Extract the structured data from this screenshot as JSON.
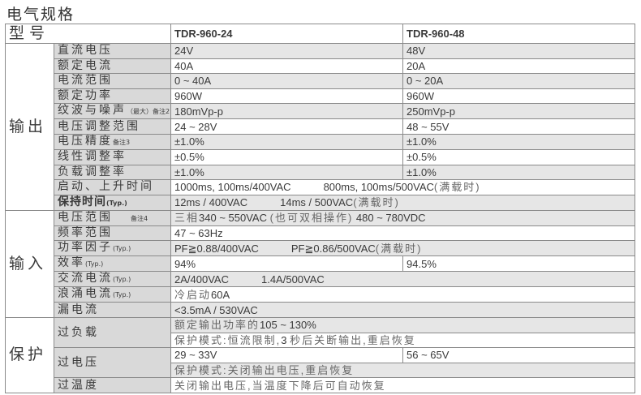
{
  "title": "电气规格",
  "header": {
    "model_label": "型号",
    "models": [
      "TDR-960-24",
      "TDR-960-48"
    ]
  },
  "sections": {
    "output": "输出",
    "input": "输入",
    "protection": "保护"
  },
  "output": {
    "dc_voltage": {
      "label": "直流电压",
      "v1": "24V",
      "v2": "48V"
    },
    "rated_current": {
      "label": "额定电流",
      "v1": "40A",
      "v2": "20A"
    },
    "current_range": {
      "label": "电流范围",
      "v1": "0 ~ 40A",
      "v2": "0 ~ 20A"
    },
    "rated_power": {
      "label": "额定功率",
      "v1": "960W",
      "v2": "960W"
    },
    "ripple": {
      "label": "纹波与噪声",
      "sub": "（最大）",
      "note": "备注2",
      "v1": "180mVp-p",
      "v2": "250mVp-p"
    },
    "voltage_adj": {
      "label": "电压调整范围",
      "v1": "24 ~ 28V",
      "v2": "48 ~ 55V"
    },
    "voltage_tol": {
      "label": "电压精度",
      "note": "备注3",
      "v1": "±1.0%",
      "v2": "±1.0%"
    },
    "line_reg": {
      "label": "线性调整率",
      "v1": "±0.5%",
      "v2": "±0.5%"
    },
    "load_reg": {
      "label": "负载调整率",
      "v1": "±1.0%",
      "v2": "±1.0%"
    },
    "setup": {
      "label": "启动、上升时间",
      "a": "1000ms, 100ms/400VAC",
      "b": "800ms, 100ms/500VAC",
      "c": "(满载时)"
    },
    "hold": {
      "label": "保持时间",
      "typ": "(Typ.)",
      "a": "12ms / 400VAC",
      "b": "14ms / 500VAC",
      "c": "(满载时)"
    }
  },
  "input": {
    "voltage_range": {
      "label": "电压范围",
      "note": "备注4",
      "a": "三相",
      "b": "340 ~ 550VAC",
      "c": "(也可双相操作)",
      "d": "480 ~ 780VDC"
    },
    "freq": {
      "label": "频率范围",
      "v": "47 ~ 63Hz"
    },
    "pf": {
      "label": "功率因子",
      "typ": "(Typ.)",
      "a": "PF≧0.88/400VAC",
      "b": "PF≧0.86/500VAC",
      "c": "(满载时)"
    },
    "eff": {
      "label": "效率",
      "typ": "(Typ.)",
      "v1": "94%",
      "v2": "94.5%"
    },
    "ac_current": {
      "label": "交流电流",
      "typ": "(Typ.)",
      "a": "2A/400VAC",
      "b": "1.4A/500VAC"
    },
    "inrush": {
      "label": "浪涌电流",
      "typ": "(Typ.)",
      "a": "冷启动",
      "b": "60A"
    },
    "leakage": {
      "label": "漏电流",
      "v": "<3.5mA / 530VAC"
    }
  },
  "protection": {
    "overload": {
      "label": "过负载",
      "a1": "额定输出功率的",
      "a2": "105 ~ 130%",
      "b1": "保护模式:恒流限制,",
      "b2": "3",
      "b3": "秒后关断输出,重启恢复"
    },
    "overvoltage": {
      "label": "过电压",
      "v1": "29 ~ 33V",
      "v2": "56 ~ 65V",
      "mode": "保护模式:关闭输出电压,重启恢复"
    },
    "overtemp": {
      "label": "过温度",
      "v": "关闭输出电压,当温度下降后可自动恢复"
    }
  }
}
